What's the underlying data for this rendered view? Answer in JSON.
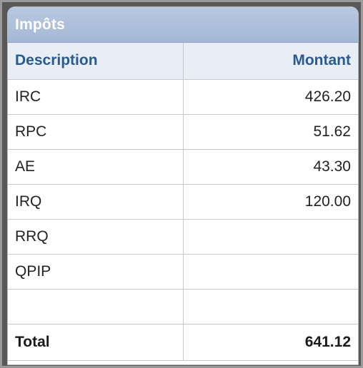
{
  "panel": {
    "title": "Impôts",
    "columns": {
      "description": "Description",
      "amount": "Montant"
    },
    "rows": [
      {
        "description": "IRC",
        "amount": "426.20"
      },
      {
        "description": "RPC",
        "amount": "51.62"
      },
      {
        "description": "AE",
        "amount": "43.30"
      },
      {
        "description": "IRQ",
        "amount": "120.00"
      },
      {
        "description": "RRQ",
        "amount": ""
      },
      {
        "description": "QPIP",
        "amount": ""
      },
      {
        "description": "",
        "amount": ""
      }
    ],
    "total": {
      "label": "Total",
      "amount": "641.12"
    }
  },
  "colors": {
    "header_bg": "#a4b8d6",
    "column_header_text": "#2a5a8f",
    "column_header_bg": "#e9eef6"
  }
}
